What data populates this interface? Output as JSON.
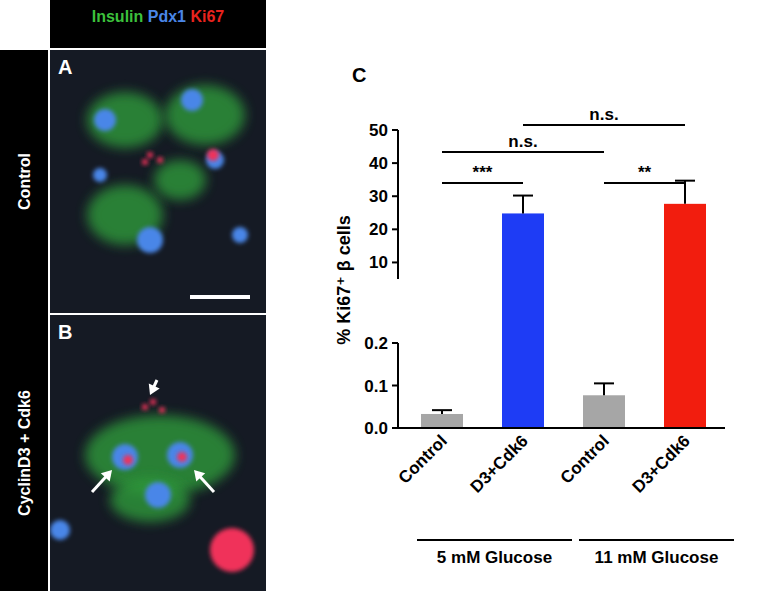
{
  "figure": {
    "stain_header": [
      {
        "text": "Insulin",
        "color": "#3cc13c"
      },
      {
        "text": "Pdx1",
        "color": "#4a86e8"
      },
      {
        "text": "Ki67",
        "color": "#e8231e"
      }
    ],
    "panels": [
      {
        "label": "A",
        "row_label": "Control"
      },
      {
        "label": "B",
        "row_label": "CyclinD3 + Cdk6"
      }
    ]
  },
  "chart_data": {
    "type": "bar",
    "panel_label": "C",
    "y_label": "% Ki67⁺ β cells",
    "categories": [
      "Control",
      "D3+Cdk6",
      "Control",
      "D3+Cdk6"
    ],
    "values": [
      0.033,
      24.8,
      0.077,
      27.7
    ],
    "errors": [
      0.009,
      5.4,
      0.028,
      7.0
    ],
    "colors": [
      "#a6a6a6",
      "#1e3cf5",
      "#a6a6a6",
      "#f21d0e"
    ],
    "y_segments": [
      {
        "ylim": [
          0,
          0.2
        ],
        "yticks": [
          {
            "value": 0,
            "label": "0.0"
          },
          {
            "value": 0.1,
            "label": "0.1"
          },
          {
            "value": 0.2,
            "label": "0.2"
          }
        ]
      },
      {
        "ylim": [
          5,
          50
        ],
        "yticks": [
          10,
          20,
          30,
          40,
          50
        ]
      }
    ],
    "groups": [
      {
        "label": "5 mM Glucose",
        "categories": [
          0,
          1
        ]
      },
      {
        "label": "11 mM Glucose",
        "categories": [
          2,
          3
        ]
      }
    ],
    "comparisons": [
      {
        "categories": [
          0,
          1
        ],
        "label": "***"
      },
      {
        "categories": [
          0,
          2
        ],
        "label": "n.s."
      },
      {
        "categories": [
          1,
          3
        ],
        "label": "n.s."
      },
      {
        "categories": [
          2,
          3
        ],
        "label": "**"
      }
    ]
  }
}
